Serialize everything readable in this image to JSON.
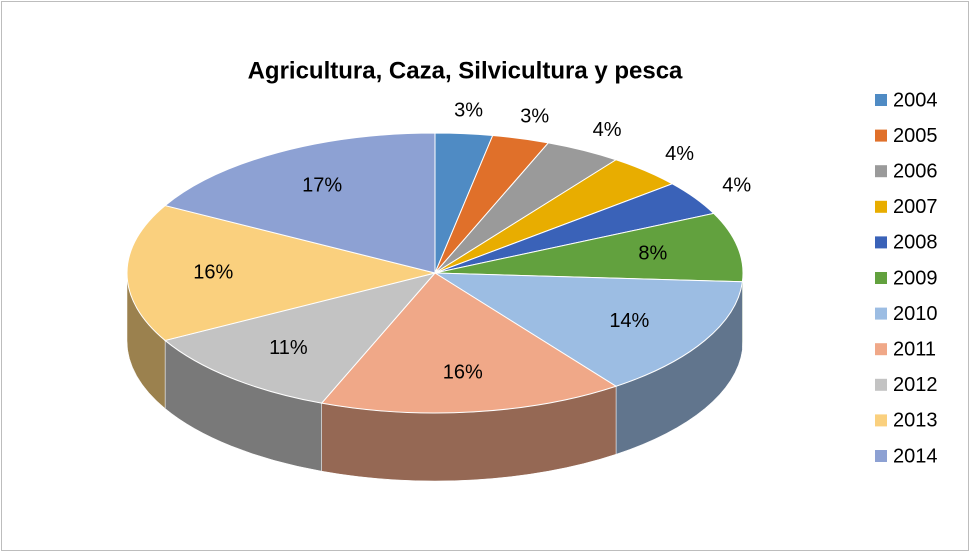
{
  "chart_data": {
    "type": "pie",
    "title": "Agricultura, Caza, Silvicultura y pesca",
    "categories": [
      "2004",
      "2005",
      "2006",
      "2007",
      "2008",
      "2009",
      "2010",
      "2011",
      "2012",
      "2013",
      "2014"
    ],
    "values": [
      3,
      3,
      4,
      4,
      4,
      8,
      14,
      16,
      11,
      16,
      17
    ],
    "value_labels": [
      "3%",
      "3%",
      "4%",
      "4%",
      "4%",
      "8%",
      "14%",
      "16%",
      "11%",
      "16%",
      "17%"
    ],
    "colors": [
      "#4f8bc4",
      "#e0702a",
      "#9a9a9a",
      "#e8ad00",
      "#3a62b8",
      "#62a13e",
      "#9cbde3",
      "#f0a888",
      "#c3c3c3",
      "#fad07e",
      "#8da1d3"
    ],
    "legend": "right"
  }
}
